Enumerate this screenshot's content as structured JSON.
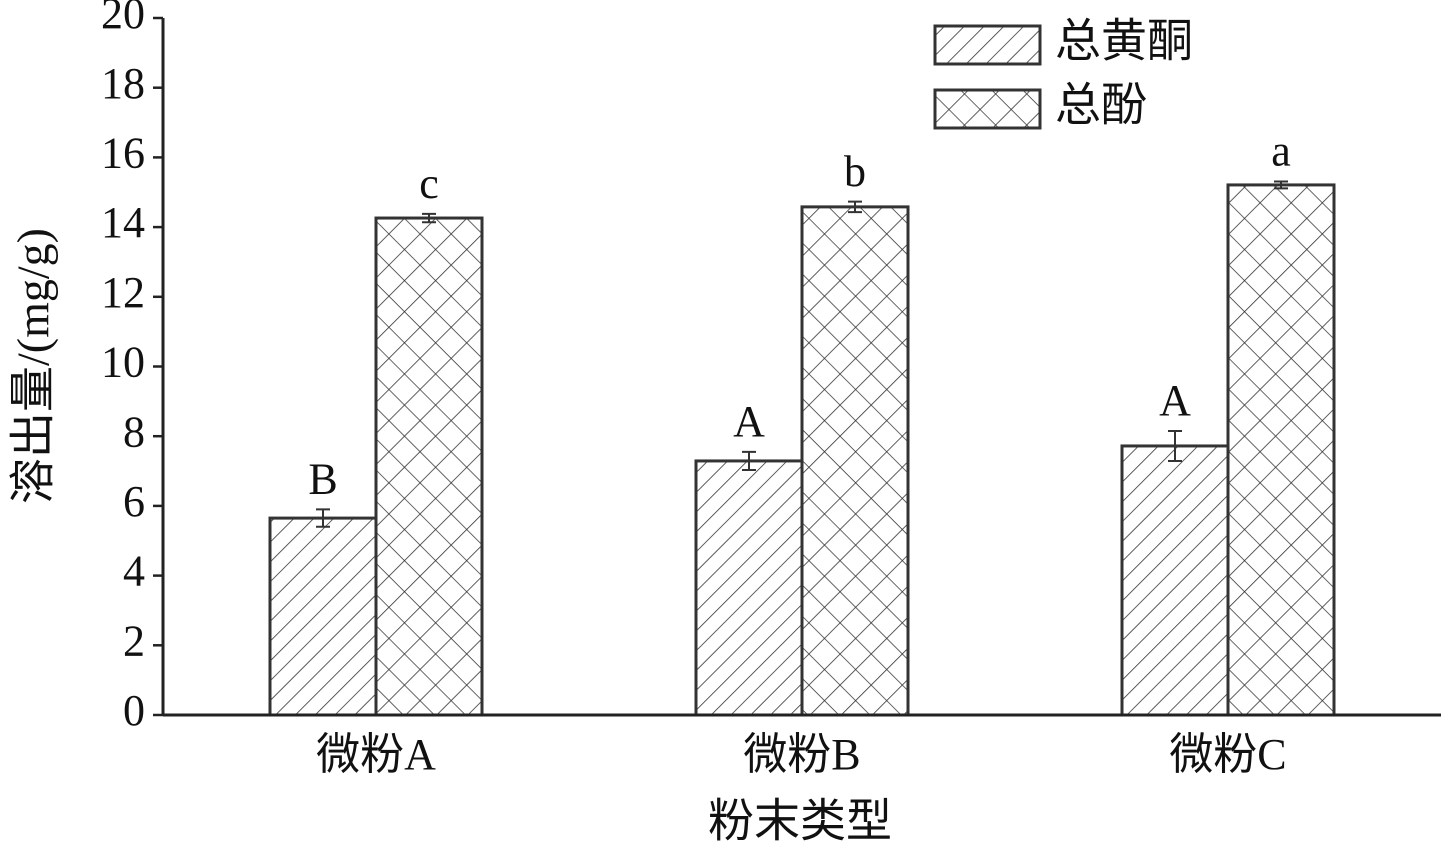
{
  "chart_data": {
    "type": "bar",
    "x_label": "粉末类型",
    "y_label": "溶出量/(mg/g)",
    "categories": [
      "微粉A",
      "微粉B",
      "微粉C"
    ],
    "series": [
      {
        "name": "总黄酮",
        "color": "#333333",
        "pattern": "hatch",
        "values": [
          5.65,
          7.29,
          7.72
        ],
        "errors": [
          0.25,
          0.26,
          0.43
        ],
        "sig_labels": [
          "B",
          "A",
          "A"
        ]
      },
      {
        "name": "总酚",
        "color": "#333333",
        "pattern": "crosshatch",
        "values": [
          14.26,
          14.58,
          15.21
        ],
        "errors": [
          0.12,
          0.15,
          0.1
        ],
        "sig_labels": [
          "c",
          "b",
          "a"
        ]
      }
    ],
    "ylim": [
      0,
      20
    ],
    "yticks": [
      0,
      2,
      4,
      6,
      8,
      10,
      12,
      14,
      16,
      18,
      20
    ],
    "legend": "upper right",
    "grid": false
  }
}
